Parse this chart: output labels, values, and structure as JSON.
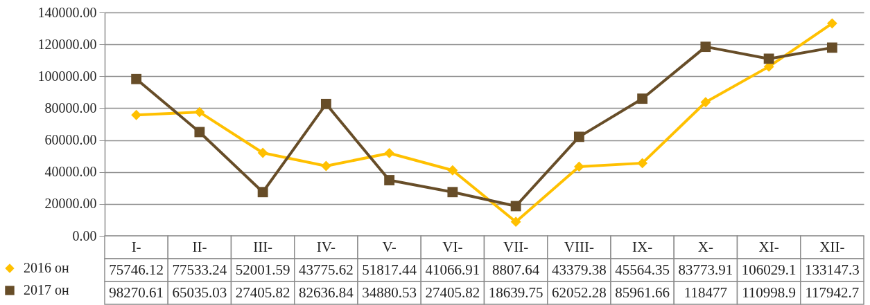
{
  "chart_data": {
    "type": "line",
    "categories": [
      "I-",
      "II-",
      "III-",
      "IV-",
      "V-",
      "VI-",
      "VII-",
      "VIII-",
      "IX-",
      "X-",
      "XI-",
      "XII-"
    ],
    "series": [
      {
        "name": "2016 он",
        "color": "#ffc000",
        "marker": "diamond",
        "values": [
          75746.12,
          77533.24,
          52001.59,
          43775.62,
          51817.44,
          41066.91,
          8807.64,
          43379.38,
          45564.35,
          83773.91,
          106029.1,
          133147.3
        ]
      },
      {
        "name": "2017 он",
        "color": "#674d28",
        "marker": "square",
        "values": [
          98270.61,
          65035.03,
          27405.82,
          82636.84,
          34880.53,
          27405.82,
          18639.75,
          62052.28,
          85961.66,
          118477,
          110998.9,
          117942.7
        ]
      }
    ],
    "ylim": [
      0,
      140000
    ],
    "yticks": [
      {
        "value": 0,
        "label": "0.00"
      },
      {
        "value": 20000,
        "label": "20000.00"
      },
      {
        "value": 40000,
        "label": "40000.00"
      },
      {
        "value": 60000,
        "label": "60000.00"
      },
      {
        "value": 80000,
        "label": "80000.00"
      },
      {
        "value": 100000,
        "label": "100000.00"
      },
      {
        "value": 120000,
        "label": "120000.00"
      },
      {
        "value": 140000,
        "label": "140000.00"
      }
    ],
    "grid": "y",
    "legend": "bottom left",
    "data_labels": true
  }
}
